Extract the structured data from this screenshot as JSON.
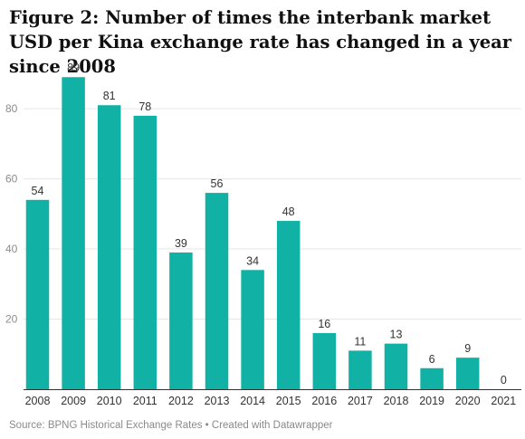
{
  "title": "Figure 2: Number of times the interbank market USD per Kina exchange rate has changed in a year since 2008",
  "source": "Source: BPNG Historical Exchange Rates • Created with Datawrapper",
  "colors": {
    "bar": "#11b2a5",
    "grid": "#e6e6e6",
    "axis": "#333333",
    "tick": "#8c8c8c",
    "label": "#333333"
  },
  "chart_data": {
    "type": "bar",
    "categories": [
      "2008",
      "2009",
      "2010",
      "2011",
      "2012",
      "2013",
      "2014",
      "2015",
      "2016",
      "2017",
      "2018",
      "2019",
      "2020",
      "2021"
    ],
    "values": [
      54,
      89,
      81,
      78,
      39,
      56,
      34,
      48,
      16,
      11,
      13,
      6,
      9,
      0
    ],
    "ylim": [
      0,
      95
    ],
    "yticks": [
      20,
      40,
      60,
      80
    ],
    "grid": true,
    "data_labels": true
  }
}
